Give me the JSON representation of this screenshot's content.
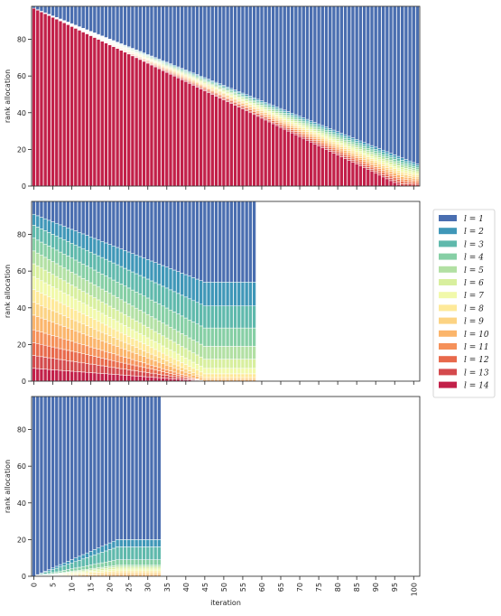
{
  "chart_data": [
    {
      "type": "bar",
      "subtype": "stacked",
      "ylabel": "rank allocation",
      "xlabel": "",
      "ylim": [
        0,
        98
      ],
      "yticks": [
        0,
        20,
        40,
        60,
        80
      ],
      "num_iterations": 102,
      "total_rank": 98,
      "layer1_start": 1,
      "layer1_end": 86,
      "layer14_start": 97,
      "layer14_end": 0,
      "layer14_end_iteration": 97
    },
    {
      "type": "bar",
      "subtype": "stacked",
      "ylabel": "rank allocation",
      "xlabel": "",
      "ylim": [
        0,
        98
      ],
      "yticks": [
        0,
        20,
        40,
        60,
        80
      ],
      "num_iterations": 59,
      "total_rank": 98,
      "start_boundaries": [
        91,
        85,
        78,
        71,
        64,
        57,
        50,
        43,
        36,
        28,
        21,
        14,
        7
      ],
      "end_boundaries": [
        54,
        41,
        29,
        19,
        12,
        7,
        4,
        2,
        1,
        0,
        0,
        0,
        0
      ],
      "plateau_iteration": 45
    },
    {
      "type": "bar",
      "subtype": "stacked",
      "ylabel": "rank allocation",
      "xlabel": "iteration",
      "ylim": [
        0,
        98
      ],
      "yticks": [
        0,
        20,
        40,
        60,
        80
      ],
      "xticks": [
        0,
        5,
        10,
        15,
        20,
        25,
        30,
        35,
        40,
        45,
        50,
        55,
        60,
        65,
        70,
        75,
        80,
        85,
        90,
        95,
        100
      ],
      "num_iterations": 34,
      "total_rank": 98,
      "end_boundaries": [
        20,
        16,
        9,
        6,
        5,
        4,
        3,
        2,
        1,
        0,
        0,
        0,
        0
      ],
      "rise_until_iteration": 22
    }
  ],
  "xlim": [
    -0.6,
    101.6
  ],
  "legend": {
    "placement": "right",
    "entries": [
      "l = 1",
      "l = 2",
      "l = 3",
      "l = 4",
      "l = 5",
      "l = 6",
      "l = 7",
      "l = 8",
      "l = 9",
      "l = 10",
      "l = 11",
      "l = 12",
      "l = 13",
      "l = 14"
    ]
  },
  "colors": [
    "#4a6eb0",
    "#3f97b8",
    "#5fb9ac",
    "#86cfa5",
    "#b2e0a3",
    "#d8ef9e",
    "#f1f9aa",
    "#fee999",
    "#fcd383",
    "#fbb56b",
    "#f5915a",
    "#e8694b",
    "#d44a4d",
    "#c22049"
  ]
}
